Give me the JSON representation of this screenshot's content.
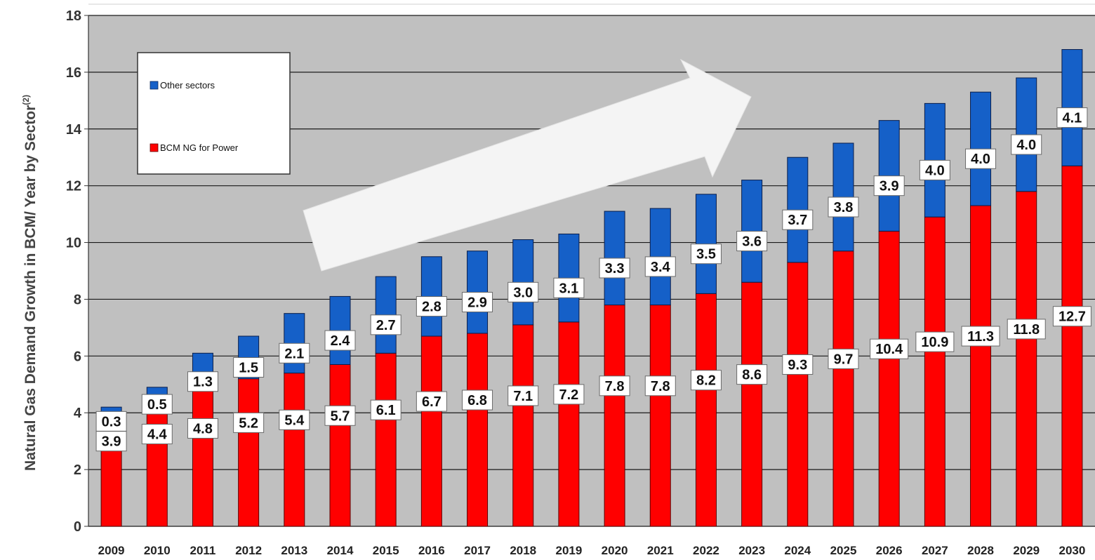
{
  "chart_data": {
    "type": "bar",
    "stacked": true,
    "categories": [
      "2009",
      "2010",
      "2011",
      "2012",
      "2013",
      "2014",
      "2015",
      "2016",
      "2017",
      "2018",
      "2019",
      "2020",
      "2021",
      "2022",
      "2023",
      "2024",
      "2025",
      "2026",
      "2027",
      "2028",
      "2029",
      "2030"
    ],
    "series": [
      {
        "name": "BCM NG for Power",
        "color": "#ff0000",
        "values": [
          3.9,
          4.4,
          4.8,
          5.2,
          5.4,
          5.7,
          6.1,
          6.7,
          6.8,
          7.1,
          7.2,
          7.8,
          7.8,
          8.2,
          8.6,
          9.3,
          9.7,
          10.4,
          10.9,
          11.3,
          11.8,
          12.7
        ]
      },
      {
        "name": "Other sectors",
        "color": "#1560c8",
        "values": [
          0.3,
          0.5,
          1.3,
          1.5,
          2.1,
          2.4,
          2.7,
          2.8,
          2.9,
          3.0,
          3.1,
          3.3,
          3.4,
          3.5,
          3.6,
          3.7,
          3.8,
          3.9,
          4.0,
          4.0,
          4.0,
          4.1
        ]
      }
    ],
    "data_labels": {
      "power": [
        "3.9",
        "4.4",
        "4.8",
        "5.2",
        "5.4",
        "5.7",
        "6.1",
        "6.7",
        "6.8",
        "7.1",
        "7.2",
        "7.8",
        "7.8",
        "8.2",
        "8.6",
        "9.3",
        "9.7",
        "10.4",
        "10.9",
        "11.3",
        "11.8",
        "12.7"
      ],
      "other": [
        "0.3",
        "0.5",
        "1.3",
        "1.5",
        "2.1",
        "2.4",
        "2.7",
        "2.8",
        "2.9",
        "3.0",
        "3.1",
        "3.3",
        "3.4",
        "3.5",
        "3.6",
        "3.7",
        "3.8",
        "3.9",
        "4.0",
        "4.0",
        "4.0",
        "4.1"
      ]
    },
    "ylabel": "Natural Gas Demand Growth in BCM/ Year by Sector",
    "ylabel_superscript": "(2)",
    "ylim": [
      0,
      18
    ],
    "yticks": [
      "0",
      "2",
      "4",
      "6",
      "8",
      "10",
      "12",
      "14",
      "16",
      "18"
    ],
    "grid": true,
    "plot_background": "#c0c0c0",
    "legend": {
      "placement": "top-left",
      "entries": [
        "Other sectors",
        "BCM NG for Power"
      ]
    },
    "annotation": "white-trend-arrow"
  }
}
